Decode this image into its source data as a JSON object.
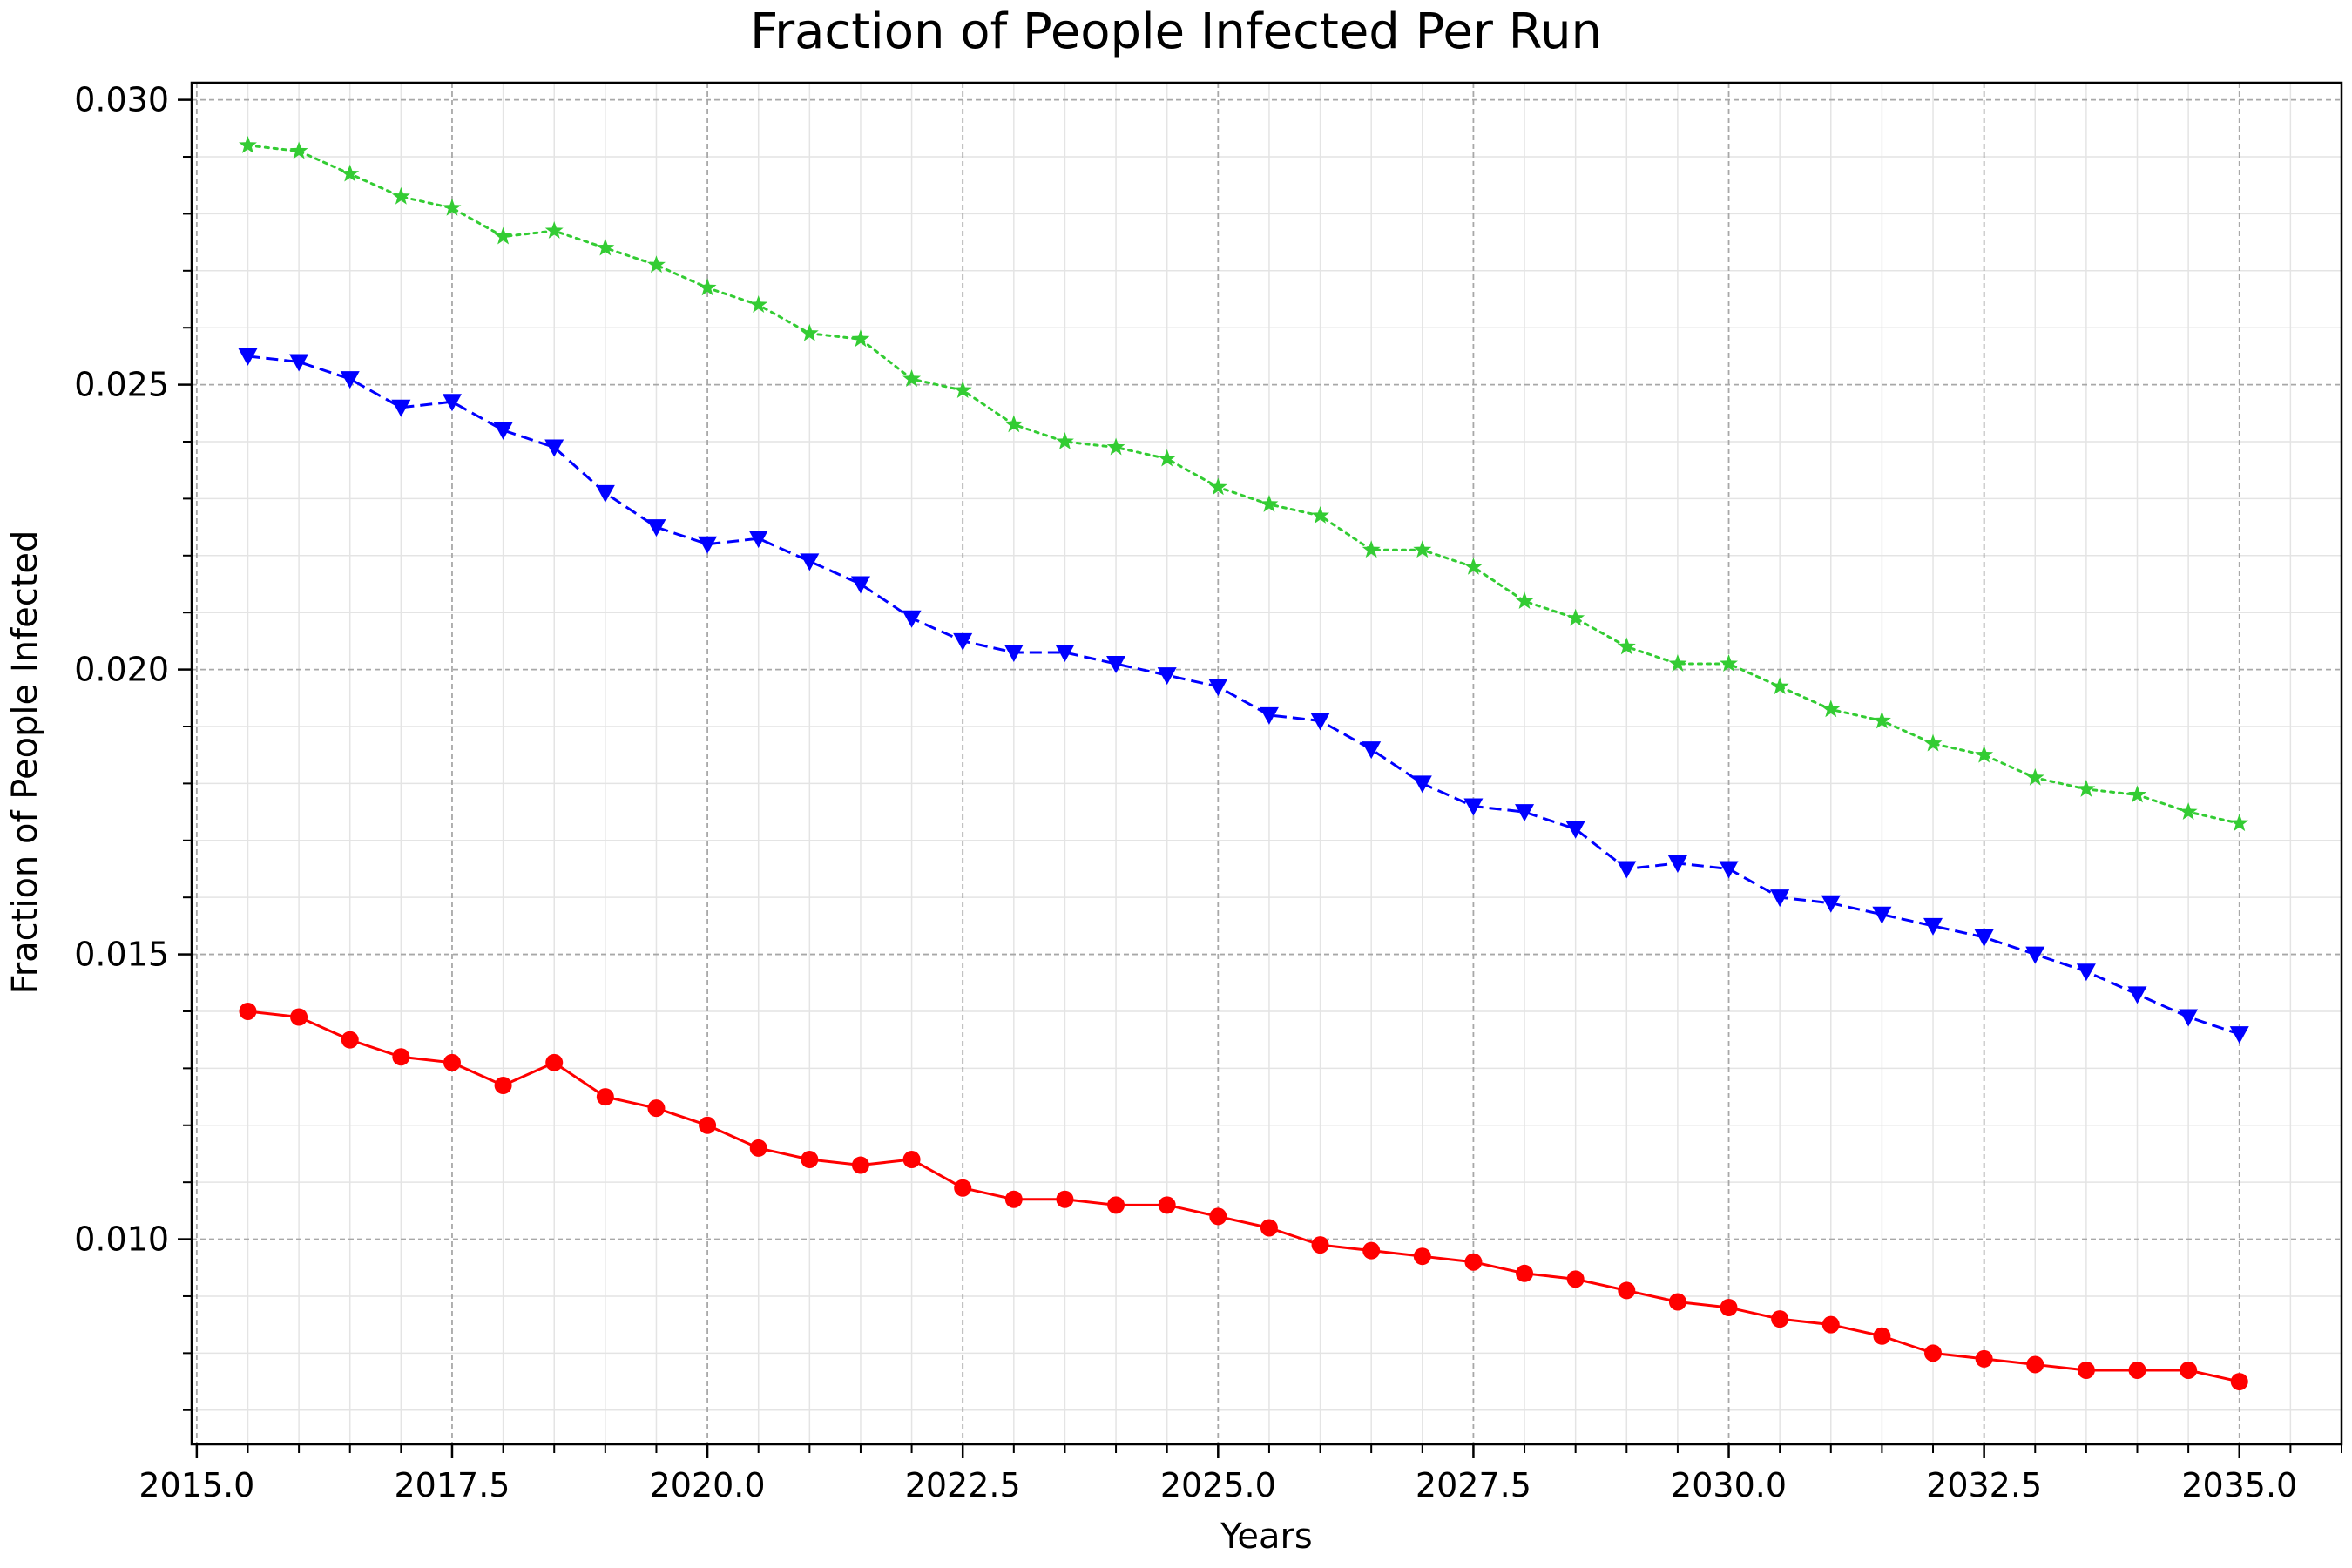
{
  "chart_data": {
    "type": "line",
    "title": "Fraction of People Infected Per Run",
    "xlabel": "Years",
    "ylabel": "Fraction of People Infected",
    "xlim": [
      2014.95,
      2036.0
    ],
    "ylim": [
      0.0064,
      0.0303
    ],
    "x_ticks": [
      2015.0,
      2017.5,
      2020.0,
      2022.5,
      2025.0,
      2027.5,
      2030.0,
      2032.5,
      2035.0
    ],
    "x_tick_labels": [
      "2015.0",
      "2017.5",
      "2020.0",
      "2022.5",
      "2025.0",
      "2027.5",
      "2030.0",
      "2032.5",
      "2035.0"
    ],
    "y_ticks": [
      0.01,
      0.015,
      0.02,
      0.025,
      0.03
    ],
    "y_tick_labels": [
      "0.010",
      "0.015",
      "0.020",
      "0.025",
      "0.030"
    ],
    "grid": true,
    "x": [
      2015.5,
      2016.0,
      2016.5,
      2017.0,
      2017.5,
      2018.0,
      2018.5,
      2019.0,
      2019.5,
      2020.0,
      2020.5,
      2021.0,
      2021.5,
      2022.0,
      2022.5,
      2023.0,
      2023.5,
      2024.0,
      2024.5,
      2025.0,
      2025.5,
      2026.0,
      2026.5,
      2027.0,
      2027.5,
      2028.0,
      2028.5,
      2029.0,
      2029.5,
      2030.0,
      2030.5,
      2031.0,
      2031.5,
      2032.0,
      2032.5,
      2033.0,
      2033.5,
      2034.0,
      2034.5,
      2035.0
    ],
    "series": [
      {
        "color": "#ff0000",
        "line_style": "solid",
        "marker": "circle",
        "values": [
          0.014,
          0.0139,
          0.0135,
          0.0132,
          0.0131,
          0.0127,
          0.0131,
          0.0125,
          0.0123,
          0.012,
          0.0116,
          0.0114,
          0.0113,
          0.0114,
          0.0109,
          0.0107,
          0.0107,
          0.0106,
          0.0106,
          0.0104,
          0.0102,
          0.0099,
          0.0098,
          0.0097,
          0.0096,
          0.0094,
          0.0093,
          0.0091,
          0.0089,
          0.0088,
          0.0086,
          0.0085,
          0.0083,
          0.008,
          0.0079,
          0.0078,
          0.0077,
          0.0077,
          0.0077,
          0.0075
        ]
      },
      {
        "color": "#0000ff",
        "line_style": "dashed",
        "marker": "triangle-down",
        "values": [
          0.0255,
          0.0254,
          0.0251,
          0.0246,
          0.0247,
          0.0242,
          0.0239,
          0.0231,
          0.0225,
          0.0222,
          0.0223,
          0.0219,
          0.0215,
          0.0209,
          0.0205,
          0.0203,
          0.0203,
          0.0201,
          0.0199,
          0.0197,
          0.0192,
          0.0191,
          0.0186,
          0.018,
          0.0176,
          0.0175,
          0.0172,
          0.0165,
          0.0166,
          0.0165,
          0.016,
          0.0159,
          0.0157,
          0.0155,
          0.0153,
          0.015,
          0.0147,
          0.0143,
          0.0139,
          0.0136
        ]
      },
      {
        "color": "#33cc33",
        "line_style": "dotted",
        "marker": "star",
        "values": [
          0.0292,
          0.0291,
          0.0287,
          0.0283,
          0.0281,
          0.0276,
          0.0277,
          0.0274,
          0.0271,
          0.0267,
          0.0264,
          0.0259,
          0.0258,
          0.0251,
          0.0249,
          0.0243,
          0.024,
          0.0239,
          0.0237,
          0.0232,
          0.0229,
          0.0227,
          0.0221,
          0.0221,
          0.0218,
          0.0212,
          0.0209,
          0.0204,
          0.0201,
          0.0201,
          0.0197,
          0.0193,
          0.0191,
          0.0187,
          0.0185,
          0.0181,
          0.0179,
          0.0178,
          0.0175,
          0.0173
        ]
      }
    ]
  }
}
